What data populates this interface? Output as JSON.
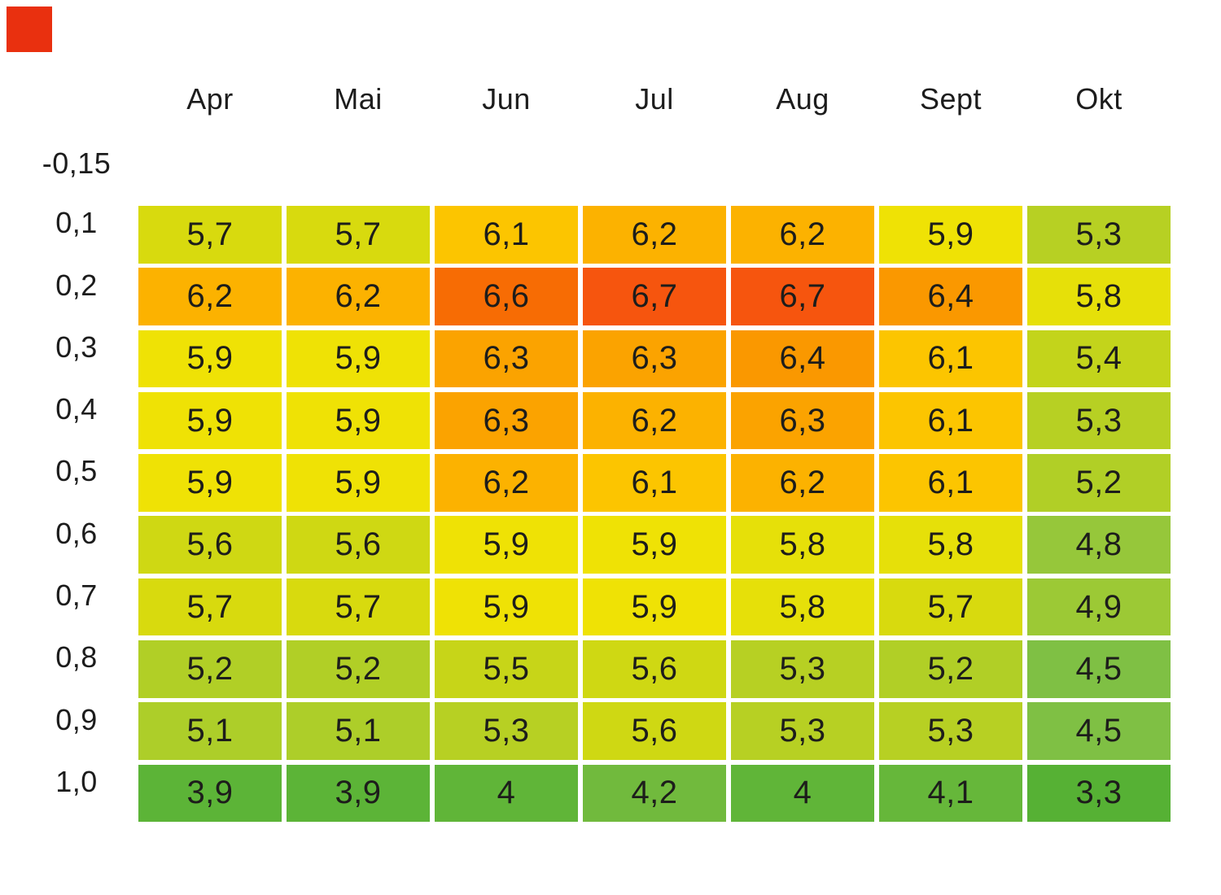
{
  "corner_mark": {
    "color": "#e9300f"
  },
  "chart_data": {
    "type": "heatmap",
    "title": "",
    "columns": [
      "Apr",
      "Mai",
      "Jun",
      "Jul",
      "Aug",
      "Sept",
      "Okt"
    ],
    "row_axis_top_label": "-0,15",
    "row_labels": [
      "0,1",
      "0,2",
      "0,3",
      "0,4",
      "0,5",
      "0,6",
      "0,7",
      "0,8",
      "0,9",
      "1,0"
    ],
    "rows": [
      {
        "label": "0,1",
        "values": [
          "5,7",
          "5,7",
          "6,1",
          "6,2",
          "6,2",
          "5,9",
          "5,3"
        ]
      },
      {
        "label": "0,2",
        "values": [
          "6,2",
          "6,2",
          "6,6",
          "6,7",
          "6,7",
          "6,4",
          "5,8"
        ]
      },
      {
        "label": "0,3",
        "values": [
          "5,9",
          "5,9",
          "6,3",
          "6,3",
          "6,4",
          "6,1",
          "5,4"
        ]
      },
      {
        "label": "0,4",
        "values": [
          "5,9",
          "5,9",
          "6,3",
          "6,2",
          "6,3",
          "6,1",
          "5,3"
        ]
      },
      {
        "label": "0,5",
        "values": [
          "5,9",
          "5,9",
          "6,2",
          "6,1",
          "6,2",
          "6,1",
          "5,2"
        ]
      },
      {
        "label": "0,6",
        "values": [
          "5,6",
          "5,6",
          "5,9",
          "5,9",
          "5,8",
          "5,8",
          "4,8"
        ]
      },
      {
        "label": "0,7",
        "values": [
          "5,7",
          "5,7",
          "5,9",
          "5,9",
          "5,8",
          "5,7",
          "4,9"
        ]
      },
      {
        "label": "0,8",
        "values": [
          "5,2",
          "5,2",
          "5,5",
          "5,6",
          "5,3",
          "5,2",
          "4,5"
        ]
      },
      {
        "label": "0,9",
        "values": [
          "5,1",
          "5,1",
          "5,3",
          "5,6",
          "5,3",
          "5,3",
          "4,5"
        ]
      },
      {
        "label": "1,0",
        "values": [
          "3,9",
          "3,9",
          "4",
          "4,2",
          "4",
          "4,1",
          "3,3"
        ]
      }
    ],
    "color_map": {
      "3,3": "#56b134",
      "3,9": "#5cb437",
      "4": "#60b538",
      "4,1": "#66b73a",
      "4,2": "#71ba3d",
      "4,5": "#7fc044",
      "4,8": "#96c73a",
      "4,9": "#9cc935",
      "5,1": "#adce29",
      "5,2": "#b1cf26",
      "5,3": "#b7d023",
      "5,4": "#c3d41b",
      "5,5": "#c7d518",
      "5,6": "#cfd813",
      "5,7": "#d8da0e",
      "5,8": "#e6e009",
      "5,9": "#efe205",
      "6,1": "#fcc500",
      "6,2": "#fcb200",
      "6,3": "#fba300",
      "6,4": "#fa9800",
      "6,6": "#f76c04",
      "6,7": "#f6550e"
    },
    "text_color": "#1d1d1b",
    "background": "#ffffff",
    "legend_position": "none",
    "grid": "white gaps between cells"
  }
}
